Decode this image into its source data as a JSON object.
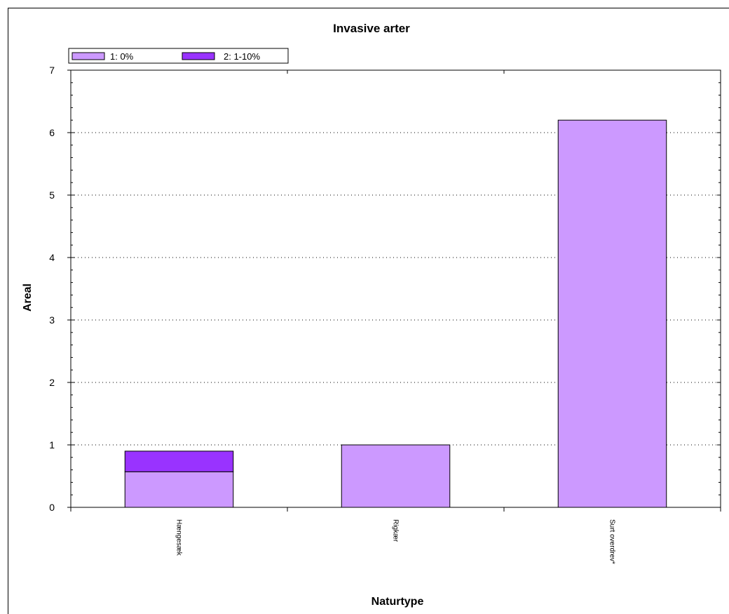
{
  "chart_data": {
    "type": "bar",
    "stacked": true,
    "title": "Invasive arter",
    "xlabel": "Naturtype",
    "ylabel": "Areal",
    "categories": [
      "Hængesæk",
      "Rigkær",
      "Surt overdrev*"
    ],
    "series": [
      {
        "name": "1: 0%",
        "values": [
          0.57,
          1.0,
          6.2
        ],
        "color": "#cc99ff"
      },
      {
        "name": "2: 1-10%",
        "values": [
          0.33,
          0,
          0
        ],
        "color": "#9933ff"
      }
    ],
    "ylim": [
      0,
      7
    ],
    "yticks": [
      "0",
      "1",
      "2",
      "3",
      "4",
      "5",
      "6",
      "7"
    ],
    "grid": "horizontal-dotted",
    "legend_position": "top-left"
  }
}
